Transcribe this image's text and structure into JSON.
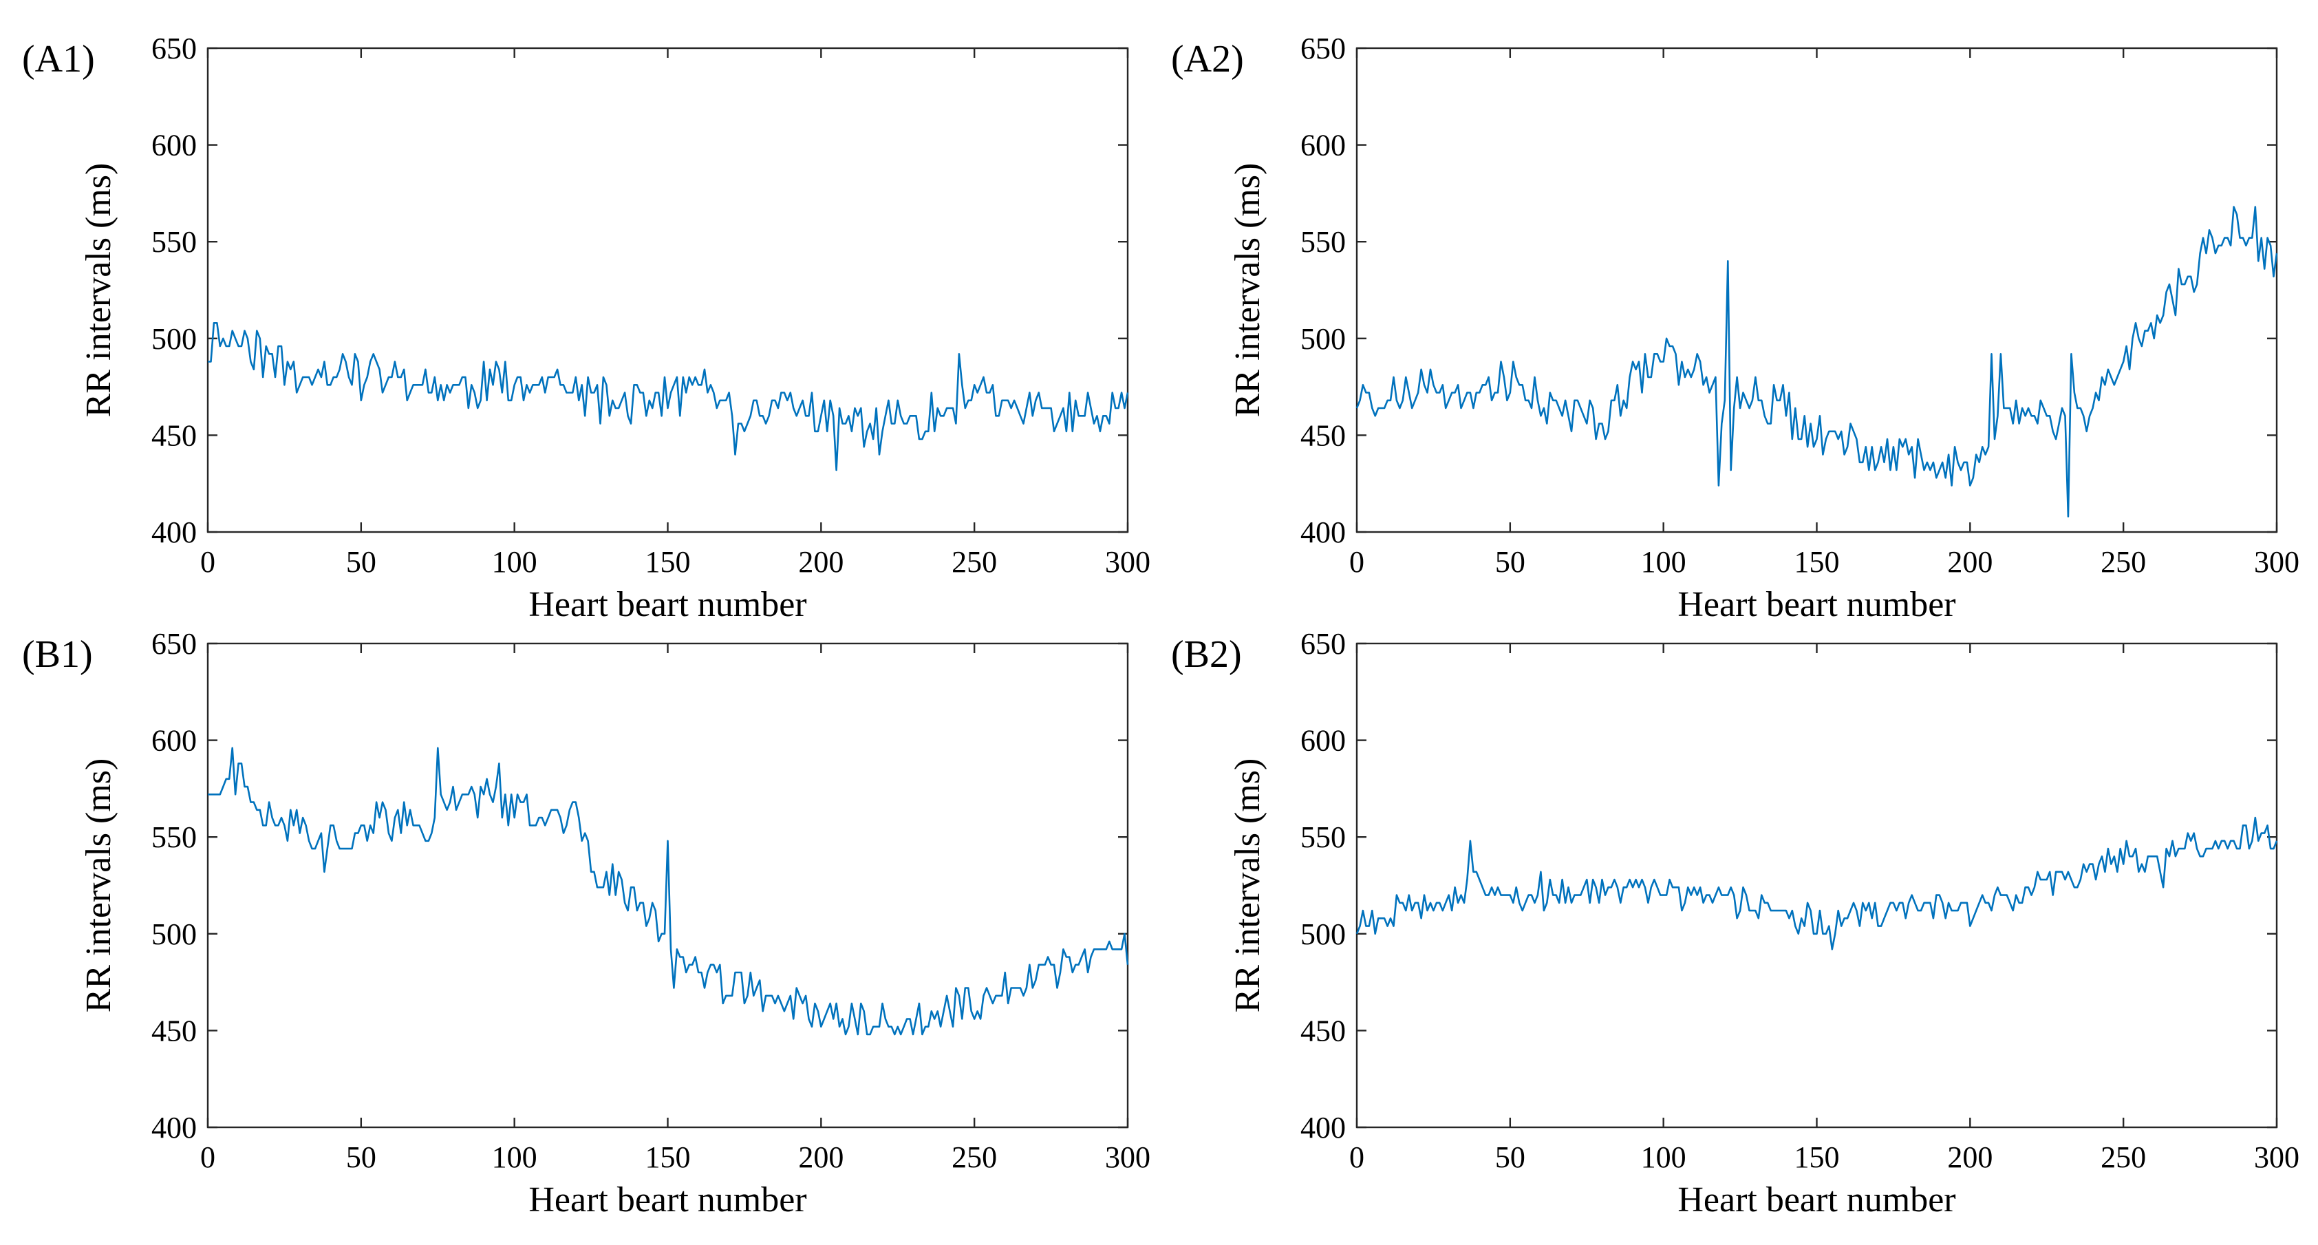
{
  "colors": {
    "series": "#0072BD",
    "axes": "#262626"
  },
  "chart_data": [
    {
      "id": "A1",
      "panel_label": "(A1)",
      "type": "line",
      "xlabel": "Heart beart number",
      "ylabel": "RR intervals (ms)",
      "xlim": [
        0,
        300
      ],
      "ylim": [
        400,
        650
      ],
      "xticks": [
        "0",
        "50",
        "100",
        "150",
        "200",
        "250",
        "300"
      ],
      "yticks": [
        "400",
        "450",
        "500",
        "550",
        "600",
        "650"
      ],
      "keypoints": [
        [
          0,
          493
        ],
        [
          3,
          505
        ],
        [
          8,
          500
        ],
        [
          15,
          495
        ],
        [
          25,
          485
        ],
        [
          40,
          483
        ],
        [
          55,
          480
        ],
        [
          70,
          476
        ],
        [
          85,
          474
        ],
        [
          100,
          480
        ],
        [
          110,
          478
        ],
        [
          120,
          470
        ],
        [
          130,
          466
        ],
        [
          140,
          468
        ],
        [
          150,
          470
        ],
        [
          165,
          475
        ],
        [
          172,
          458
        ],
        [
          180,
          466
        ],
        [
          195,
          463
        ],
        [
          205,
          455
        ],
        [
          215,
          458
        ],
        [
          225,
          458
        ],
        [
          240,
          462
        ],
        [
          250,
          470
        ],
        [
          260,
          462
        ],
        [
          280,
          462
        ],
        [
          300,
          461
        ]
      ],
      "noise": 12,
      "seed": 11,
      "spikes": [
        [
          172,
          441
        ],
        [
          205,
          432
        ],
        [
          219,
          440
        ],
        [
          245,
          491
        ]
      ]
    },
    {
      "id": "A2",
      "panel_label": "(A2)",
      "type": "line",
      "xlabel": "Heart beart number",
      "ylabel": "RR intervals (ms)",
      "xlim": [
        0,
        300
      ],
      "ylim": [
        400,
        650
      ],
      "xticks": [
        "0",
        "50",
        "100",
        "150",
        "200",
        "250",
        "300"
      ],
      "yticks": [
        "400",
        "450",
        "500",
        "550",
        "600",
        "650"
      ],
      "keypoints": [
        [
          0,
          468
        ],
        [
          20,
          472
        ],
        [
          40,
          476
        ],
        [
          55,
          477
        ],
        [
          65,
          462
        ],
        [
          80,
          458
        ],
        [
          90,
          478
        ],
        [
          100,
          488
        ],
        [
          110,
          485
        ],
        [
          120,
          478
        ],
        [
          130,
          472
        ],
        [
          140,
          462
        ],
        [
          150,
          452
        ],
        [
          160,
          447
        ],
        [
          170,
          441
        ],
        [
          180,
          438
        ],
        [
          190,
          438
        ],
        [
          200,
          436
        ],
        [
          205,
          440
        ],
        [
          210,
          462
        ],
        [
          220,
          460
        ],
        [
          230,
          459
        ],
        [
          240,
          465
        ],
        [
          250,
          488
        ],
        [
          260,
          510
        ],
        [
          270,
          530
        ],
        [
          280,
          548
        ],
        [
          287,
          562
        ],
        [
          295,
          548
        ],
        [
          300,
          543
        ]
      ],
      "noise": 12,
      "seed": 23,
      "spikes": [
        [
          118,
          424
        ],
        [
          121,
          538
        ],
        [
          122,
          430
        ],
        [
          207,
          490
        ],
        [
          210,
          492
        ],
        [
          232,
          407
        ],
        [
          233,
          490
        ],
        [
          293,
          568
        ]
      ]
    },
    {
      "id": "B1",
      "panel_label": "(B1)",
      "type": "line",
      "xlabel": "Heart beart number",
      "ylabel": "RR intervals (ms)",
      "xlim": [
        0,
        300
      ],
      "ylim": [
        400,
        650
      ],
      "xticks": [
        "0",
        "50",
        "100",
        "150",
        "200",
        "250",
        "300"
      ],
      "yticks": [
        "400",
        "450",
        "500",
        "550",
        "600",
        "650"
      ],
      "keypoints": [
        [
          0,
          570
        ],
        [
          5,
          578
        ],
        [
          10,
          582
        ],
        [
          18,
          565
        ],
        [
          25,
          558
        ],
        [
          35,
          550
        ],
        [
          45,
          550
        ],
        [
          55,
          560
        ],
        [
          65,
          558
        ],
        [
          72,
          548
        ],
        [
          78,
          572
        ],
        [
          90,
          570
        ],
        [
          100,
          565
        ],
        [
          110,
          562
        ],
        [
          120,
          560
        ],
        [
          125,
          533
        ],
        [
          135,
          525
        ],
        [
          145,
          510
        ],
        [
          150,
          496
        ],
        [
          155,
          480
        ],
        [
          165,
          476
        ],
        [
          180,
          470
        ],
        [
          190,
          466
        ],
        [
          200,
          457
        ],
        [
          220,
          454
        ],
        [
          235,
          455
        ],
        [
          250,
          466
        ],
        [
          270,
          476
        ],
        [
          285,
          490
        ],
        [
          300,
          493
        ]
      ],
      "noise": 10,
      "seed": 37,
      "spikes": [
        [
          8,
          595
        ],
        [
          38,
          533
        ],
        [
          75,
          595
        ],
        [
          95,
          587
        ],
        [
          150,
          547
        ],
        [
          152,
          472
        ],
        [
          212,
          447
        ],
        [
          233,
          446
        ]
      ]
    },
    {
      "id": "B2",
      "panel_label": "(B2)",
      "type": "line",
      "xlabel": "Heart beart number",
      "ylabel": "RR intervals (ms)",
      "xlim": [
        0,
        300
      ],
      "ylim": [
        400,
        650
      ],
      "xticks": [
        "0",
        "50",
        "100",
        "150",
        "200",
        "250",
        "300"
      ],
      "yticks": [
        "400",
        "450",
        "500",
        "550",
        "600",
        "650"
      ],
      "keypoints": [
        [
          0,
          506
        ],
        [
          10,
          510
        ],
        [
          20,
          517
        ],
        [
          30,
          520
        ],
        [
          38,
          525
        ],
        [
          45,
          518
        ],
        [
          60,
          520
        ],
        [
          80,
          522
        ],
        [
          100,
          520
        ],
        [
          120,
          518
        ],
        [
          135,
          513
        ],
        [
          150,
          506
        ],
        [
          165,
          510
        ],
        [
          180,
          516
        ],
        [
          200,
          514
        ],
        [
          210,
          518
        ],
        [
          220,
          525
        ],
        [
          235,
          530
        ],
        [
          245,
          537
        ],
        [
          260,
          540
        ],
        [
          280,
          546
        ],
        [
          300,
          552
        ]
      ],
      "noise": 8,
      "seed": 53,
      "spikes": [
        [
          37,
          547
        ],
        [
          60,
          530
        ],
        [
          155,
          493
        ],
        [
          200,
          502
        ],
        [
          263,
          525
        ],
        [
          293,
          561
        ]
      ]
    }
  ]
}
